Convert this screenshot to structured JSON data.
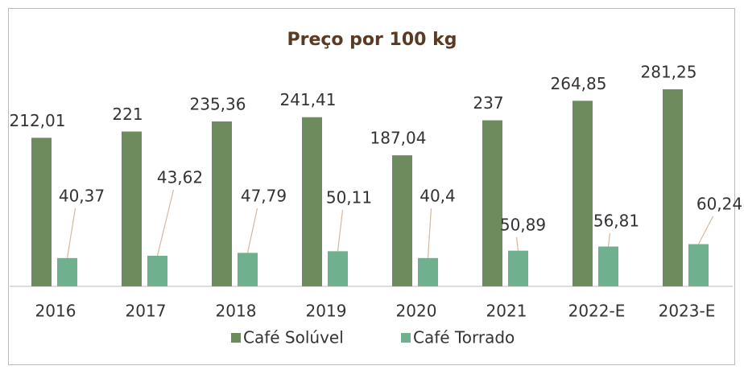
{
  "chart_data": {
    "type": "bar",
    "title": "Preço por 100 kg",
    "categories": [
      "2016",
      "2017",
      "2018",
      "2019",
      "2020",
      "2021",
      "2022-E",
      "2023-E"
    ],
    "series": [
      {
        "name": "Café Solúvel",
        "color": "#6e8b5e",
        "values": [
          212.01,
          221,
          235.36,
          241.41,
          187.04,
          237,
          264.85,
          281.25
        ],
        "value_labels": [
          "212,01",
          "221",
          "235,36",
          "241,41",
          "187,04",
          "237",
          "264,85",
          "281,25"
        ]
      },
      {
        "name": "Café Torrado",
        "color": "#6fb08f",
        "values": [
          40.37,
          43.62,
          47.79,
          50.11,
          40.4,
          50.89,
          56.81,
          60.24
        ],
        "value_labels": [
          "40,37",
          "43,62",
          "47,79",
          "50,11",
          "40,4",
          "50,89",
          "56,81",
          "60,24"
        ]
      }
    ],
    "legend": "bottom"
  }
}
